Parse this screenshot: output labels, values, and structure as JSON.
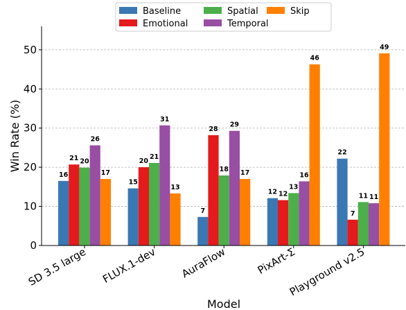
{
  "chart_data": {
    "type": "bar",
    "xlabel": "Model",
    "ylabel": "Win Rate (%)",
    "ylim": [
      0,
      56
    ],
    "yticks": [
      0,
      10,
      20,
      30,
      40,
      50
    ],
    "grid": "y-dashed",
    "legend": "top-center",
    "categories": [
      "SD 3.5 large",
      "FLUX.1-dev",
      "AuraFlow",
      "PixArt-Σ",
      "Playground v2.5"
    ],
    "series": [
      {
        "name": "Baseline",
        "color": "#3a78b4",
        "values": [
          16.5,
          14.6,
          7.3,
          12.1,
          22.2
        ],
        "labels": [
          "16",
          "15",
          "7",
          "12",
          "22"
        ]
      },
      {
        "name": "Emotional",
        "color": "#e41a1c",
        "values": [
          20.7,
          20.0,
          28.2,
          11.6,
          6.6
        ],
        "labels": [
          "21",
          "20",
          "28",
          "12",
          "7"
        ]
      },
      {
        "name": "Spatial",
        "color": "#4daf4a",
        "values": [
          19.9,
          21.1,
          17.9,
          13.4,
          11.1
        ],
        "labels": [
          "20",
          "21",
          "18",
          "13",
          "11"
        ]
      },
      {
        "name": "Temporal",
        "color": "#984ea3",
        "values": [
          25.6,
          30.7,
          29.3,
          16.4,
          10.8
        ],
        "labels": [
          "26",
          "31",
          "29",
          "16",
          "11"
        ]
      },
      {
        "name": "Skip",
        "color": "#ff7f00",
        "values": [
          17.0,
          13.3,
          17.0,
          46.3,
          49.1
        ],
        "labels": [
          "17",
          "13",
          "17",
          "46",
          "49"
        ]
      }
    ]
  }
}
